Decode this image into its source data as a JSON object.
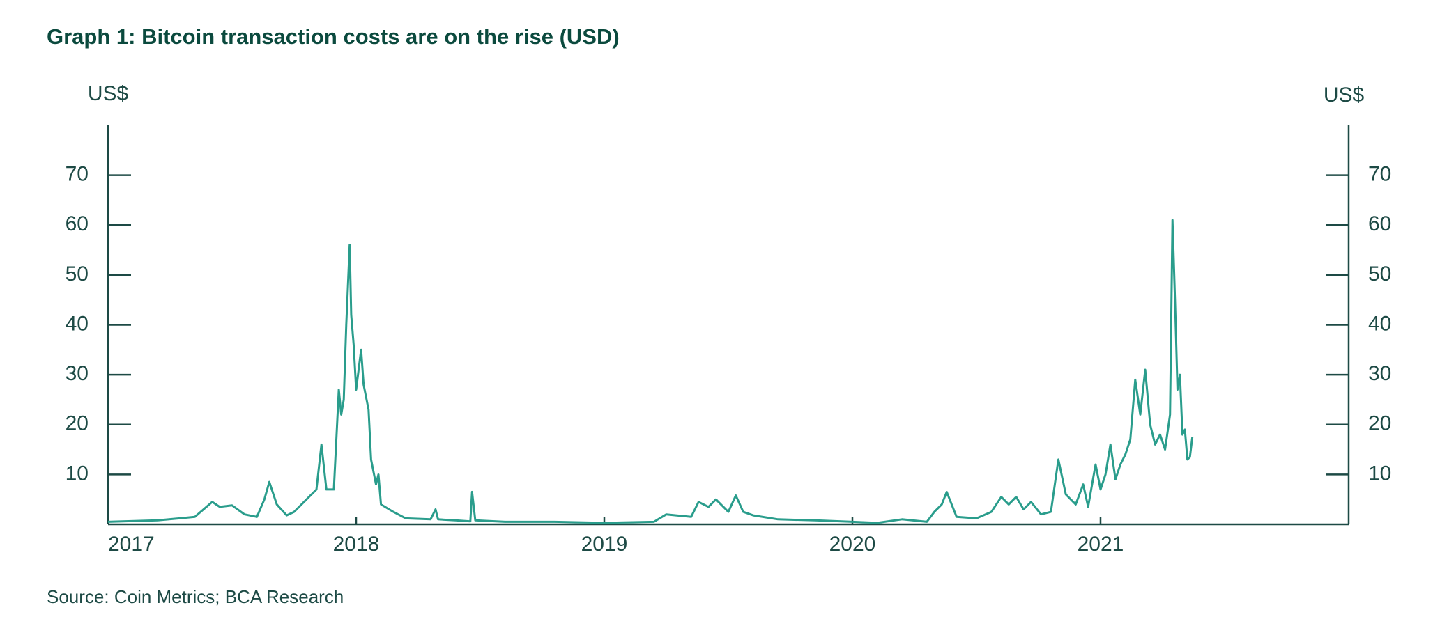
{
  "chart_data": {
    "type": "line",
    "title": "Graph 1: Bitcoin transaction costs are on the rise (USD)",
    "ylabel": "US$",
    "source": "Source: Coin Metrics; BCA Research",
    "xlim": [
      2017,
      2022
    ],
    "xticks": [
      2017,
      2018,
      2019,
      2020,
      2021
    ],
    "ylim": [
      0,
      80
    ],
    "yticks": [
      10,
      20,
      30,
      40,
      50,
      60,
      70
    ],
    "series": [
      {
        "color": "#2a9d8c",
        "x": [
          2017.0,
          2017.2,
          2017.35,
          2017.42,
          2017.45,
          2017.5,
          2017.55,
          2017.6,
          2017.63,
          2017.65,
          2017.68,
          2017.72,
          2017.75,
          2017.8,
          2017.84,
          2017.86,
          2017.88,
          2017.91,
          2017.93,
          2017.94,
          2017.95,
          2017.96,
          2017.974,
          2017.98,
          2017.99,
          2018.0,
          2018.02,
          2018.03,
          2018.05,
          2018.06,
          2018.08,
          2018.09,
          2018.1,
          2018.15,
          2018.2,
          2018.3,
          2018.32,
          2018.33,
          2018.4,
          2018.46,
          2018.467,
          2018.48,
          2018.6,
          2018.8,
          2019.0,
          2019.2,
          2019.25,
          2019.35,
          2019.38,
          2019.42,
          2019.45,
          2019.5,
          2019.53,
          2019.56,
          2019.6,
          2019.7,
          2019.85,
          2020.0,
          2020.1,
          2020.2,
          2020.3,
          2020.33,
          2020.36,
          2020.38,
          2020.42,
          2020.5,
          2020.56,
          2020.6,
          2020.63,
          2020.66,
          2020.69,
          2020.72,
          2020.76,
          2020.8,
          2020.83,
          2020.86,
          2020.9,
          2020.93,
          2020.95,
          2020.98,
          2021.0,
          2021.02,
          2021.04,
          2021.06,
          2021.08,
          2021.1,
          2021.12,
          2021.14,
          2021.16,
          2021.18,
          2021.2,
          2021.22,
          2021.24,
          2021.26,
          2021.28,
          2021.29,
          2021.3,
          2021.31,
          2021.32,
          2021.33,
          2021.34,
          2021.35,
          2021.36,
          2021.37
        ],
        "values": [
          0.5,
          0.8,
          1.5,
          4.5,
          3.5,
          3.8,
          2,
          1.5,
          5,
          8.5,
          4,
          1.8,
          2.5,
          5,
          7,
          16,
          7,
          7,
          27,
          22,
          25,
          40,
          56,
          42,
          36,
          27,
          35,
          28,
          23,
          13,
          8,
          10,
          4,
          2.5,
          1.2,
          1,
          3,
          1,
          0.8,
          0.6,
          6.5,
          0.8,
          0.5,
          0.5,
          0.3,
          0.5,
          2,
          1.5,
          4.5,
          3.5,
          5,
          2.5,
          5.8,
          2.5,
          1.8,
          1,
          0.8,
          0.5,
          0.3,
          1,
          0.5,
          2.5,
          4,
          6.5,
          1.5,
          1.2,
          2.5,
          5.5,
          4,
          5.5,
          3,
          4.5,
          2,
          2.5,
          13,
          6,
          4,
          8,
          3.5,
          12,
          7,
          10,
          16,
          9,
          12,
          14,
          17,
          29,
          22,
          31,
          20,
          16,
          18,
          15,
          22,
          61,
          45,
          27,
          30,
          18,
          19,
          13,
          13.5,
          17.5
        ]
      }
    ]
  }
}
